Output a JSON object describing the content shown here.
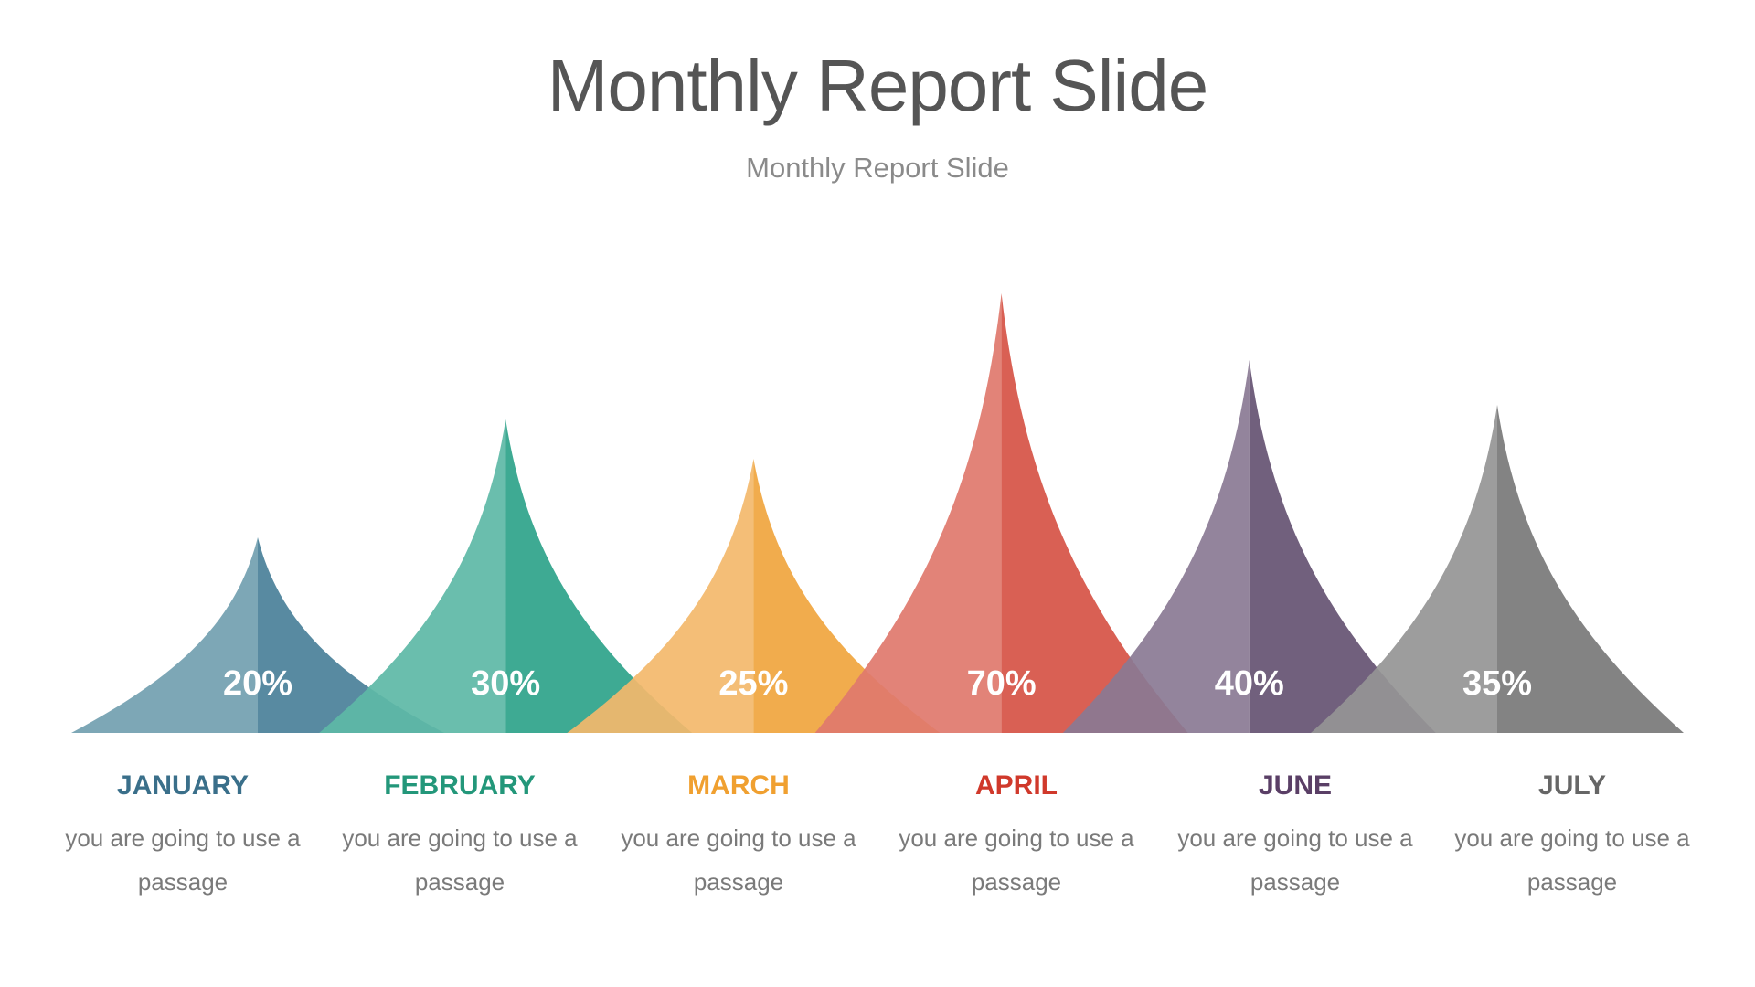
{
  "title": "Monthly Report Slide",
  "subtitle": "Monthly Report Slide",
  "chart_data": {
    "type": "area",
    "categories": [
      "JANUARY",
      "FEBRUARY",
      "MARCH",
      "APRIL",
      "JUNE",
      "JULY"
    ],
    "values": [
      20,
      30,
      25,
      70,
      40,
      35
    ],
    "value_labels": [
      "20%",
      "30%",
      "25%",
      "70%",
      "40%",
      "35%"
    ],
    "descriptions": [
      "you are going to use a passage",
      "you are going to use a passage",
      "you are going to use a passage",
      "you are going to use a passage",
      "you are going to use a passage",
      "you are going to use a passage"
    ],
    "colors": [
      {
        "light": "#729fb0",
        "dark": "#4a8099",
        "label": "#3a6f8a"
      },
      {
        "light": "#5db8a6",
        "dark": "#2ea38a",
        "label": "#23977a"
      },
      {
        "light": "#f3b96b",
        "dark": "#f0a53e",
        "label": "#f0a030"
      },
      {
        "light": "#e0786d",
        "dark": "#d65245",
        "label": "#d0392b"
      },
      {
        "light": "#8a7a94",
        "dark": "#655372",
        "label": "#5a3f66"
      },
      {
        "light": "#959595",
        "dark": "#787878",
        "label": "#666666"
      }
    ],
    "grid": false,
    "legend": "none"
  }
}
